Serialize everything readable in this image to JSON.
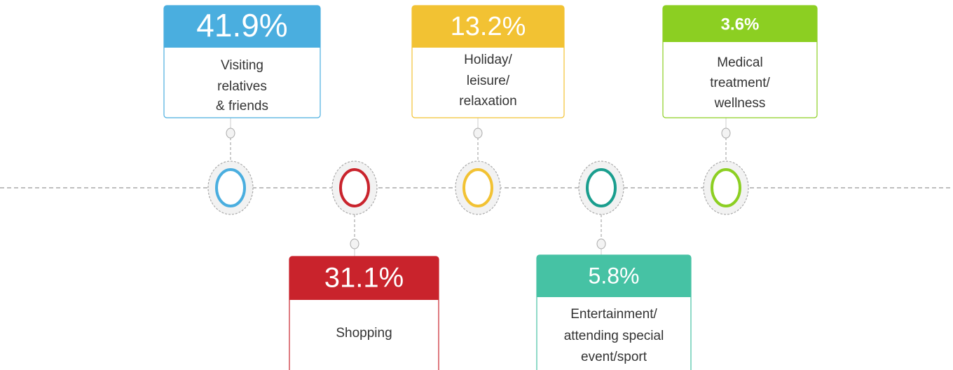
{
  "items": [
    {
      "value": "41.9%",
      "description": [
        "Visiting",
        "relatives",
        "& friends"
      ]
    },
    {
      "value": "31.1%",
      "description": [
        "Shopping"
      ]
    },
    {
      "value": "13.2%",
      "description": [
        "Holiday/",
        "leisure/",
        "relaxation"
      ]
    },
    {
      "value": "5.8%",
      "description": [
        "Entertainment/",
        "attending special",
        "event/sport"
      ]
    },
    {
      "value": "3.6%",
      "description": [
        "Medical",
        "treatment/",
        "wellness"
      ]
    }
  ]
}
